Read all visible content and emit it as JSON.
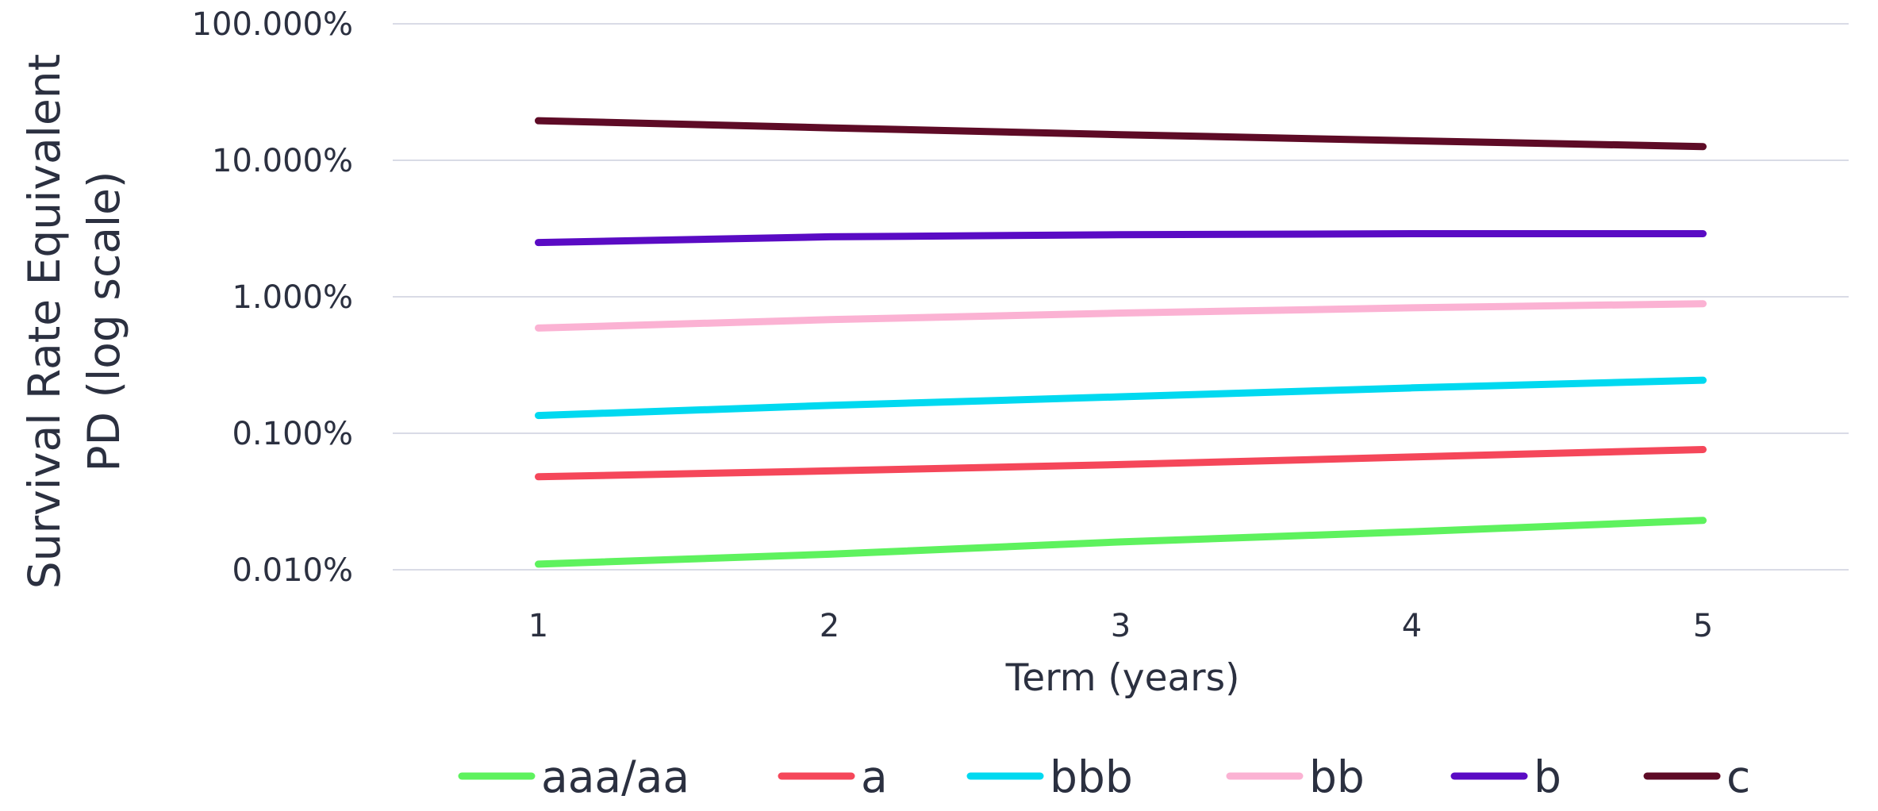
{
  "chart_data": {
    "type": "line",
    "title": "",
    "xlabel": "Term (years)",
    "ylabel_lines": [
      "Survival Rate Equivalent",
      "PD (log scale)"
    ],
    "y_scale": "log",
    "ylim": [
      0.01,
      100
    ],
    "y_tick_values": [
      0.01,
      0.1,
      1,
      10,
      100
    ],
    "y_tick_labels": [
      "0.010%",
      "0.100%",
      "1.000%",
      "10.000%",
      "100.000%"
    ],
    "x": [
      1,
      2,
      3,
      4,
      5
    ],
    "x_tick_labels": [
      "1",
      "2",
      "3",
      "4",
      "5"
    ],
    "xlim": [
      0.5,
      5.5
    ],
    "grid": "horizontal",
    "legend_position": "bottom",
    "gridline_color": "#d9dbe6",
    "text_color": "#2b3040",
    "series": [
      {
        "name": "aaa/aa",
        "color": "#5ef25e",
        "values": [
          0.011,
          0.013,
          0.016,
          0.019,
          0.023
        ]
      },
      {
        "name": "a",
        "color": "#f5475a",
        "values": [
          0.048,
          0.053,
          0.059,
          0.067,
          0.076
        ]
      },
      {
        "name": "bbb",
        "color": "#00d9f0",
        "values": [
          0.135,
          0.16,
          0.185,
          0.215,
          0.245
        ]
      },
      {
        "name": "bb",
        "color": "#fbb2d3",
        "values": [
          0.59,
          0.68,
          0.76,
          0.83,
          0.89
        ]
      },
      {
        "name": "b",
        "color": "#5a0bc4",
        "values": [
          2.5,
          2.75,
          2.85,
          2.9,
          2.9
        ]
      },
      {
        "name": "c",
        "color": "#5e0b26",
        "values": [
          19.5,
          17.3,
          15.4,
          13.9,
          12.6
        ]
      }
    ]
  }
}
